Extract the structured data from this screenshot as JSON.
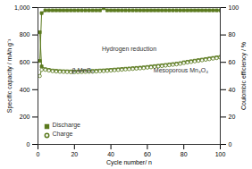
{
  "chart_data": {
    "type": "line",
    "x_label": "Cycle number/ n",
    "y_label": "Specific capacity / mAh g⁻¹",
    "y2_label": "Coulombic efficiency / %",
    "xlim": [
      0,
      100
    ],
    "xticks": [
      0,
      20,
      40,
      60,
      80,
      100
    ],
    "ylim": [
      0,
      1000
    ],
    "yticks": [
      0,
      200,
      400,
      600,
      800,
      1000
    ],
    "y2lim": [
      0,
      100
    ],
    "y2ticks": [
      0,
      20,
      40,
      60,
      80,
      100
    ],
    "legend": "bottom-left",
    "annotations": [
      "β-MnO₂",
      "Hydrogen reduction",
      "Mesoporous Mn₃O₄"
    ],
    "x": [
      1,
      2,
      4,
      6,
      8,
      10,
      12,
      14,
      16,
      18,
      20,
      22,
      24,
      26,
      28,
      30,
      32,
      34,
      36,
      38,
      40,
      42,
      44,
      46,
      48,
      50,
      52,
      54,
      56,
      58,
      60,
      62,
      64,
      66,
      68,
      70,
      72,
      74,
      76,
      78,
      80,
      82,
      84,
      86,
      88,
      90,
      92,
      94,
      96,
      98,
      100
    ],
    "series": [
      {
        "name": "Discharge",
        "color": "#5b7a1e",
        "marker": "square",
        "values": [
          820,
          570,
          550,
          545,
          540,
          538,
          536,
          535,
          534,
          533,
          533,
          533,
          534,
          535,
          536,
          537,
          538,
          540,
          541,
          543,
          545,
          547,
          549,
          551,
          553,
          555,
          557,
          559,
          561,
          563,
          566,
          569,
          572,
          575,
          578,
          581,
          584,
          587,
          590,
          594,
          600,
          604,
          608,
          612,
          616,
          620,
          624,
          628,
          632,
          636,
          640
        ]
      },
      {
        "name": "Charge",
        "color": "#5b7a1e",
        "marker": "circle",
        "values": [
          500,
          545,
          545,
          540,
          535,
          533,
          531,
          530,
          529,
          528,
          528,
          528,
          529,
          530,
          531,
          532,
          533,
          535,
          536,
          538,
          540,
          542,
          544,
          546,
          548,
          550,
          552,
          554,
          556,
          558,
          561,
          564,
          567,
          570,
          573,
          576,
          579,
          582,
          585,
          589,
          595,
          599,
          603,
          607,
          611,
          615,
          619,
          623,
          627,
          631,
          635
        ]
      },
      {
        "name": "Coulombic efficiency",
        "color": "#5b7a1e",
        "marker": "square",
        "axis": "y2",
        "values": [
          61,
          96,
          98,
          98,
          98,
          98,
          98,
          98,
          98,
          98,
          98,
          98,
          98,
          98,
          98,
          98,
          98,
          98,
          99.5,
          98,
          98,
          98,
          98,
          98,
          98,
          98,
          98,
          98,
          98,
          98,
          98,
          98,
          98,
          98,
          98,
          98,
          98,
          98,
          98,
          98,
          98,
          98,
          98,
          98,
          98,
          98,
          98,
          98,
          98,
          98,
          98
        ]
      }
    ]
  }
}
